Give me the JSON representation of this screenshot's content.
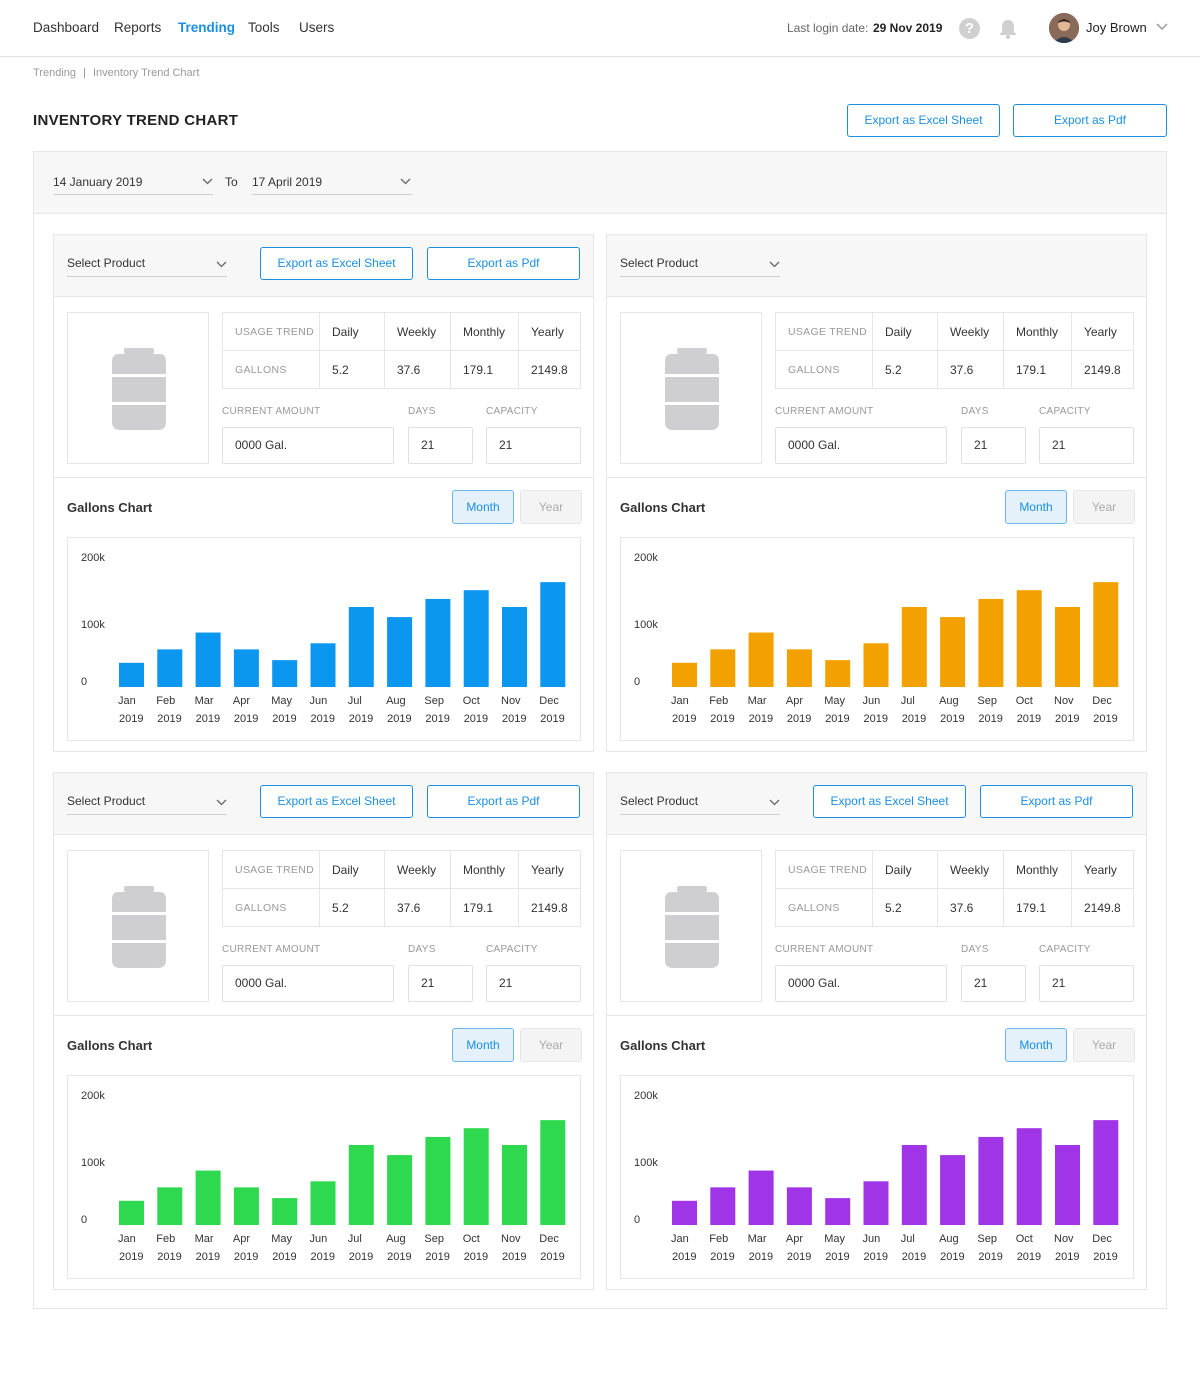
{
  "nav": {
    "items": [
      "Dashboard",
      "Reports",
      "Trending",
      "Tools",
      "Users"
    ],
    "active": "Trending",
    "last_login_label": "Last login date:",
    "last_login_date": "29 Nov 2019",
    "user_name": "Joy Brown",
    "help_glyph": "?"
  },
  "breadcrumb": {
    "items": [
      "Trending",
      "Inventory Trend Chart"
    ],
    "separator": "|"
  },
  "page": {
    "title": "INVENTORY TREND CHART",
    "export_excel": "Export as Excel Sheet",
    "export_pdf": "Export as Pdf"
  },
  "date_range": {
    "from": "14 January 2019",
    "to_label": "To",
    "to": "17 April 2019"
  },
  "panel_common": {
    "select_placeholder": "Select Product",
    "export_excel": "Export as Excel Sheet",
    "export_pdf": "Export as Pdf",
    "usage_trend_label": "USAGE TREND",
    "gallons_label": "GALLONS",
    "periods": [
      "Daily",
      "Weekly",
      "Monthly",
      "Yearly"
    ],
    "gallons_values": [
      "5.2",
      "37.6",
      "179.1",
      "2149.8"
    ],
    "current_amount_label": "CURRENT AMOUNT",
    "days_label": "DAYS",
    "capacity_label": "CAPACITY",
    "current_amount": "0000 Gal.",
    "days": "21",
    "capacity": "21",
    "chart_title": "Gallons Chart",
    "toggle_month": "Month",
    "toggle_year": "Year"
  },
  "panels": [
    {
      "id": "p1",
      "color": "#0b97f0",
      "show_export": true
    },
    {
      "id": "p2",
      "color": "#f2a100",
      "show_export": false
    },
    {
      "id": "p3",
      "color": "#2ed94f",
      "show_export": true
    },
    {
      "id": "p4",
      "color": "#a035e8",
      "show_export": true
    }
  ],
  "colors": {
    "accent": "#1a8fe3",
    "tank": "#cfcfd1"
  },
  "icons": {
    "help": "help-icon",
    "bell": "bell-icon",
    "chevron": "chevron-down-icon",
    "tank": "tank-icon"
  },
  "chart_data": [
    {
      "type": "bar",
      "categories": [
        "Jan 2019",
        "Feb 2019",
        "Mar 2019",
        "Apr 2019",
        "May 2019",
        "Jun 2019",
        "Jul 2019",
        "Aug 2019",
        "Sep 2019",
        "Oct 2019",
        "Nov 2019",
        "Dec 2019"
      ],
      "months": [
        "Jan",
        "Feb",
        "Mar",
        "Apr",
        "May",
        "Jun",
        "Jul",
        "Aug",
        "Sep",
        "Oct",
        "Nov",
        "Dec"
      ],
      "years": [
        "2019",
        "2019",
        "2019",
        "2019",
        "2019",
        "2019",
        "2019",
        "2019",
        "2019",
        "2019",
        "2019",
        "2019"
      ],
      "values": [
        36000,
        56000,
        81000,
        56000,
        40000,
        65000,
        119000,
        104000,
        131000,
        144000,
        119000,
        156000
      ],
      "yticks": [
        "0",
        "100k",
        "200k"
      ],
      "ylim": [
        0,
        180000
      ],
      "color": "#0b97f0"
    },
    {
      "type": "bar",
      "categories": [
        "Jan 2019",
        "Feb 2019",
        "Mar 2019",
        "Apr 2019",
        "May 2019",
        "Jun 2019",
        "Jul 2019",
        "Aug 2019",
        "Sep 2019",
        "Oct 2019",
        "Nov 2019",
        "Dec 2019"
      ],
      "months": [
        "Jan",
        "Feb",
        "Mar",
        "Apr",
        "May",
        "Jun",
        "Jul",
        "Aug",
        "Sep",
        "Oct",
        "Nov",
        "Dec"
      ],
      "years": [
        "2019",
        "2019",
        "2019",
        "2019",
        "2019",
        "2019",
        "2019",
        "2019",
        "2019",
        "2019",
        "2019",
        "2019"
      ],
      "values": [
        36000,
        56000,
        81000,
        56000,
        40000,
        65000,
        119000,
        104000,
        131000,
        144000,
        119000,
        156000
      ],
      "yticks": [
        "0",
        "100k",
        "200k"
      ],
      "ylim": [
        0,
        180000
      ],
      "color": "#f2a100"
    },
    {
      "type": "bar",
      "categories": [
        "Jan 2019",
        "Feb 2019",
        "Mar 2019",
        "Apr 2019",
        "May 2019",
        "Jun 2019",
        "Jul 2019",
        "Aug 2019",
        "Sep 2019",
        "Oct 2019",
        "Nov 2019",
        "Dec 2019"
      ],
      "months": [
        "Jan",
        "Feb",
        "Mar",
        "Apr",
        "May",
        "Jun",
        "Jul",
        "Aug",
        "Sep",
        "Oct",
        "Nov",
        "Dec"
      ],
      "years": [
        "2019",
        "2019",
        "2019",
        "2019",
        "2019",
        "2019",
        "2019",
        "2019",
        "2019",
        "2019",
        "2019",
        "2019"
      ],
      "values": [
        36000,
        56000,
        81000,
        56000,
        40000,
        65000,
        119000,
        104000,
        131000,
        144000,
        119000,
        156000
      ],
      "yticks": [
        "0",
        "100k",
        "200k"
      ],
      "ylim": [
        0,
        180000
      ],
      "color": "#2ed94f"
    },
    {
      "type": "bar",
      "categories": [
        "Jan 2019",
        "Feb 2019",
        "Mar 2019",
        "Apr 2019",
        "May 2019",
        "Jun 2019",
        "Jul 2019",
        "Aug 2019",
        "Sep 2019",
        "Oct 2019",
        "Nov 2019",
        "Dec 2019"
      ],
      "months": [
        "Jan",
        "Feb",
        "Mar",
        "Apr",
        "May",
        "Jun",
        "Jul",
        "Aug",
        "Sep",
        "Oct",
        "Nov",
        "Dec"
      ],
      "years": [
        "2019",
        "2019",
        "2019",
        "2019",
        "2019",
        "2019",
        "2019",
        "2019",
        "2019",
        "2019",
        "2019",
        "2019"
      ],
      "values": [
        36000,
        56000,
        81000,
        56000,
        40000,
        65000,
        119000,
        104000,
        131000,
        144000,
        119000,
        156000
      ],
      "yticks": [
        "0",
        "100k",
        "200k"
      ],
      "ylim": [
        0,
        180000
      ],
      "color": "#a035e8"
    }
  ]
}
